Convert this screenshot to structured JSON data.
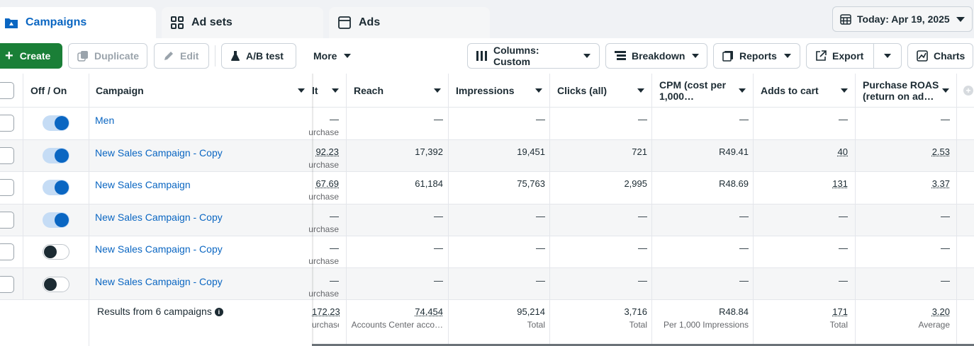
{
  "tabs": [
    {
      "label": "Campaigns",
      "icon": "folder-icon"
    },
    {
      "label": "Ad sets",
      "icon": "grid-icon"
    },
    {
      "label": "Ads",
      "icon": "ad-icon"
    }
  ],
  "date_range": "Today: Apr 19, 2025",
  "toolbar": {
    "create": "Create",
    "duplicate": "Duplicate",
    "edit": "Edit",
    "ab_test": "A/B test",
    "more": "More",
    "columns": "Columns: Custom",
    "breakdown": "Breakdown",
    "reports": "Reports",
    "export": "Export",
    "charts": "Charts"
  },
  "columns": {
    "off_on": "Off / On",
    "campaign": "Campaign",
    "result_fragment": "lt",
    "reach": "Reach",
    "impressions": "Impressions",
    "clicks": "Clicks (all)",
    "cpm_line1": "CPM (cost per",
    "cpm_line2": "1,000…",
    "adds_to_cart": "Adds to cart",
    "roas_line1": "Purchase ROAS",
    "roas_line2": "(return on ad…"
  },
  "rows": [
    {
      "name": "Men",
      "status": "on",
      "result": "—",
      "result_sub": "urchase",
      "reach": "—",
      "impressions": "—",
      "clicks": "—",
      "cpm": "—",
      "adds": "—",
      "roas": "—"
    },
    {
      "name": "New Sales Campaign - Copy",
      "status": "on",
      "result": "92.23",
      "result_sub": "urchase",
      "reach": "17,392",
      "impressions": "19,451",
      "clicks": "721",
      "cpm": "R49.41",
      "adds": "40",
      "roas": "2.53"
    },
    {
      "name": "New Sales Campaign",
      "status": "on",
      "result": "67.69",
      "result_sub": "urchase",
      "reach": "61,184",
      "impressions": "75,763",
      "clicks": "2,995",
      "cpm": "R48.69",
      "adds": "131",
      "roas": "3.37"
    },
    {
      "name": "New Sales Campaign - Copy",
      "status": "on",
      "result": "—",
      "result_sub": "urchase",
      "reach": "—",
      "impressions": "—",
      "clicks": "—",
      "cpm": "—",
      "adds": "—",
      "roas": "—"
    },
    {
      "name": "New Sales Campaign - Copy",
      "status": "off",
      "result": "—",
      "result_sub": "urchase",
      "reach": "—",
      "impressions": "—",
      "clicks": "—",
      "cpm": "—",
      "adds": "—",
      "roas": "—"
    },
    {
      "name": "New Sales Campaign - Copy",
      "status": "off",
      "result": "—",
      "result_sub": "urchase",
      "reach": "—",
      "impressions": "—",
      "clicks": "—",
      "cpm": "—",
      "adds": "—",
      "roas": "—"
    }
  ],
  "totals": {
    "label": "Results from 6 campaigns",
    "result": "172.23",
    "result_sub": "urchase",
    "reach": "74,454",
    "reach_sub": "Accounts Center acco…",
    "impressions": "95,214",
    "impressions_sub": "Total",
    "clicks": "3,716",
    "clicks_sub": "Total",
    "cpm": "R48.84",
    "cpm_sub": "Per 1,000 Impressions",
    "adds": "171",
    "adds_sub": "Total",
    "roas": "3.20",
    "roas_sub": "Average"
  },
  "colors": {
    "accent": "#0a66c2",
    "create_green": "#1a7f37",
    "row_stripe": "#f5f6f7"
  }
}
